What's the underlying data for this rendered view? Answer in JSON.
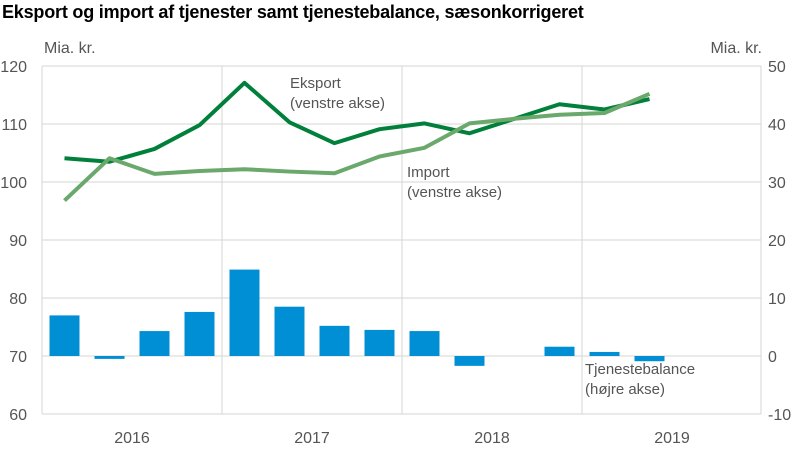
{
  "chart_data": {
    "type": "bar+line",
    "title": "Eksport og import af tjenester samt tjenestebalance, sæsonkorrigeret",
    "left_axis": {
      "unit_label": "Mia. kr.",
      "ylim": [
        60,
        120
      ],
      "ticks": [
        "120",
        "110",
        "100",
        "90",
        "80",
        "70",
        "60"
      ]
    },
    "right_axis": {
      "unit_label": "Mia. kr.",
      "ylim": [
        -10,
        50
      ],
      "ticks": [
        "50",
        "40",
        "30",
        "20",
        "10",
        "0",
        "-10"
      ]
    },
    "x_labels": [
      "2016",
      "2017",
      "2018",
      "2019"
    ],
    "quarters": [
      "2016K1",
      "2016K2",
      "2016K3",
      "2016K4",
      "2017K1",
      "2017K2",
      "2017K3",
      "2017K4",
      "2018K1",
      "2018K2",
      "2018K3",
      "2018K4",
      "2019K1",
      "2019K2"
    ],
    "grid": true,
    "series": [
      {
        "name": "Eksport (venstre akse)",
        "label_lines": [
          "Eksport",
          "(venstre akse)"
        ],
        "type": "line",
        "axis": "left",
        "color": "#00803a",
        "values": [
          104.1,
          103.5,
          105.7,
          109.8,
          117.1,
          110.3,
          106.7,
          109.1,
          110.1,
          108.4,
          110.9,
          113.4,
          112.5,
          114.3
        ]
      },
      {
        "name": "Import (venstre akse)",
        "label_lines": [
          "Import",
          "(venstre akse)"
        ],
        "type": "line",
        "axis": "left",
        "color": "#6aa86b",
        "values": [
          96.8,
          104.1,
          101.4,
          101.9,
          102.2,
          101.8,
          101.5,
          104.4,
          105.9,
          110.1,
          110.9,
          111.6,
          111.9,
          115.2
        ]
      },
      {
        "name": "Tjenestebalance (højre akse)",
        "label_lines": [
          "Tjenestebalance",
          "(højre akse)"
        ],
        "type": "bar",
        "axis": "right",
        "color": "#008fd5",
        "values": [
          7.0,
          -0.5,
          4.3,
          7.6,
          14.9,
          8.5,
          5.2,
          4.5,
          4.3,
          -1.7,
          0.0,
          1.6,
          0.7,
          -0.9
        ]
      }
    ]
  }
}
